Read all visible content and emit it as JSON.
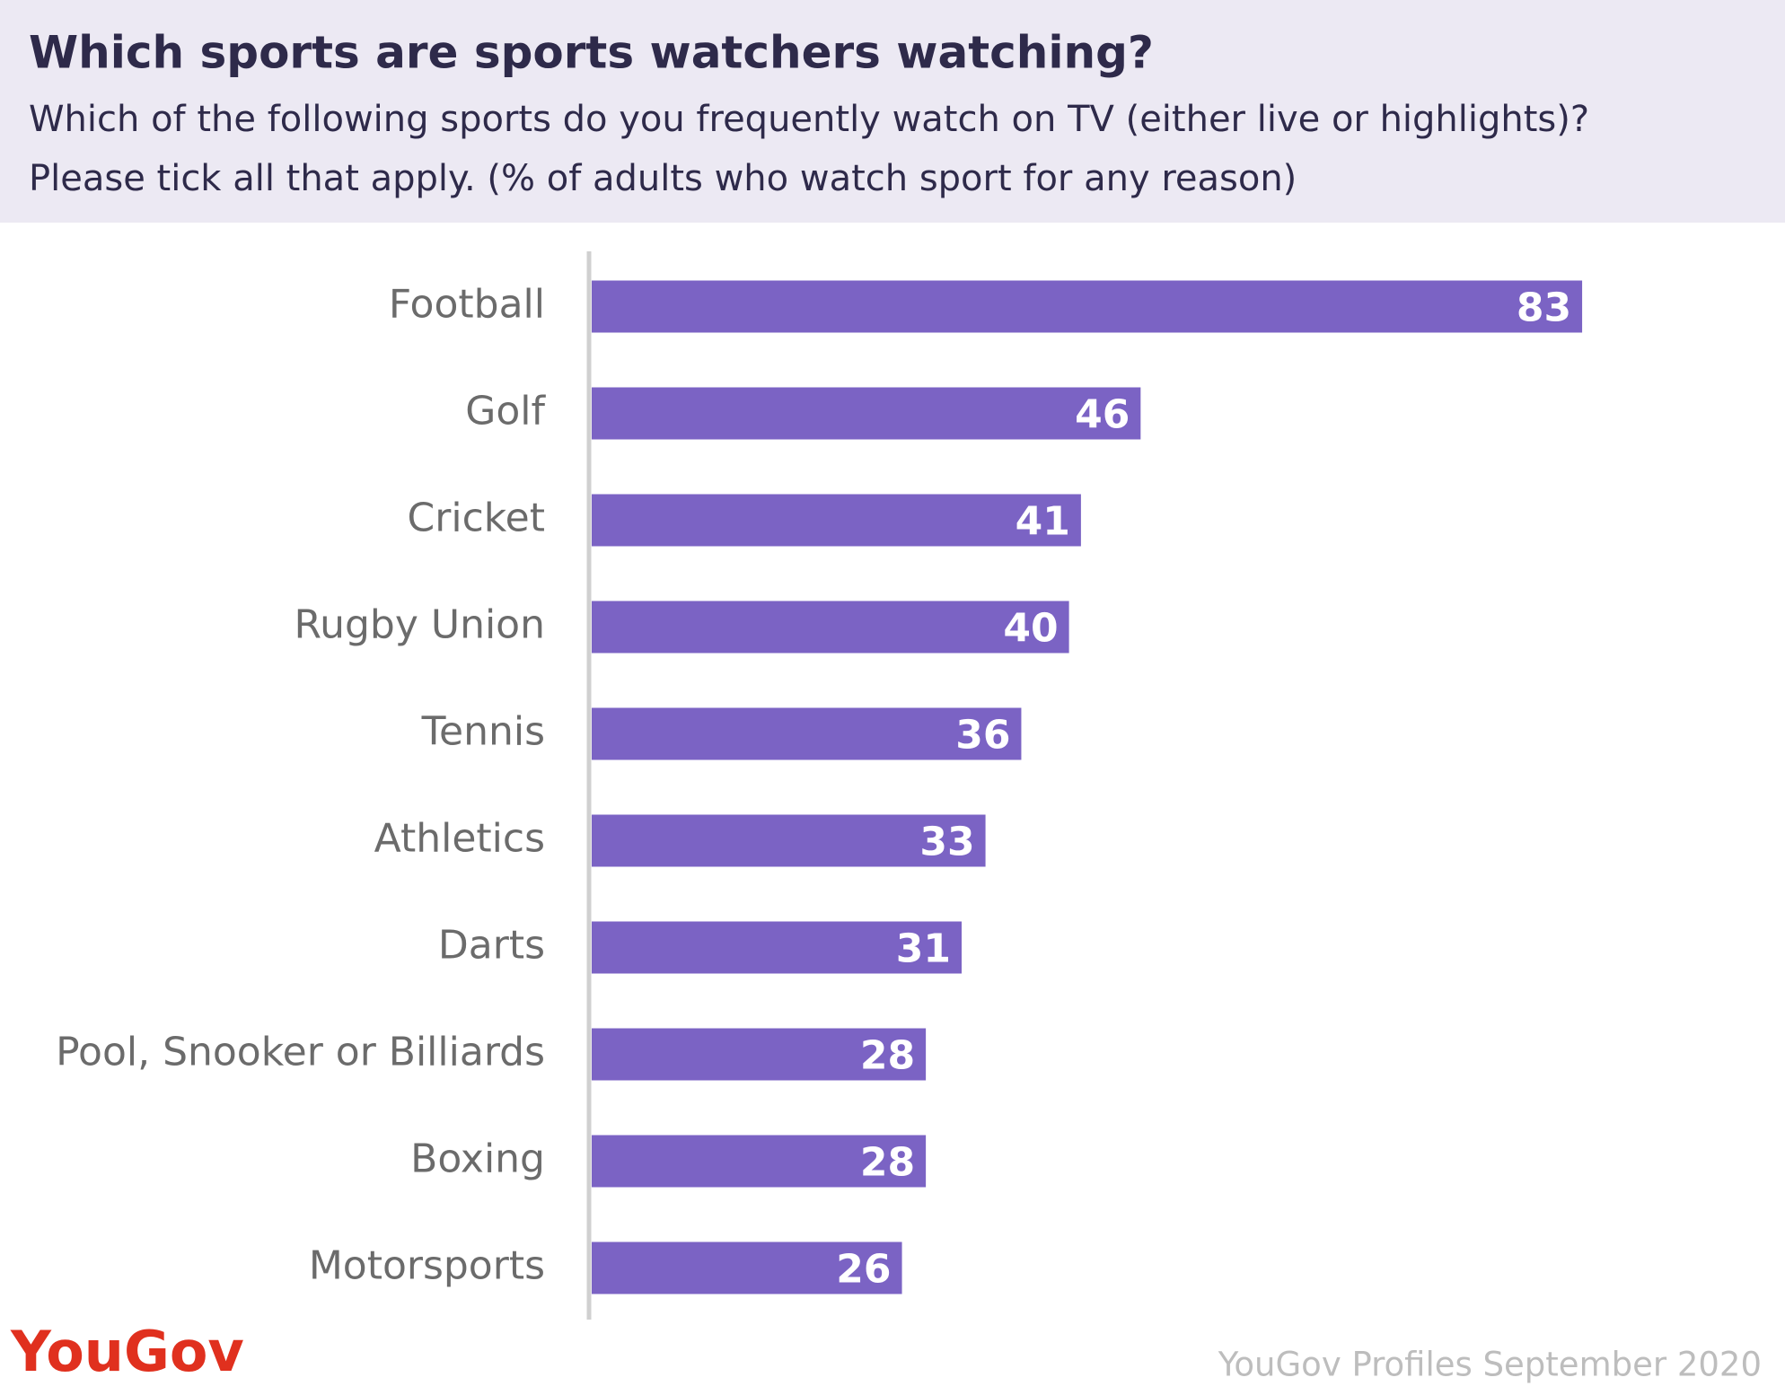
{
  "chart_data": {
    "type": "bar",
    "orientation": "horizontal",
    "title": "Which sports are sports watchers watching?",
    "subtitle": [
      "Which of the following sports do you frequently watch on TV (either live or highlights)?",
      "Please tick all that apply. (% of adults who watch sport for any reason)"
    ],
    "categories": [
      "Football",
      "Golf",
      "Cricket",
      "Rugby Union",
      "Tennis",
      "Athletics",
      "Darts",
      "Pool, Snooker or Billiards",
      "Boxing",
      "Motorsports"
    ],
    "values": [
      83,
      46,
      41,
      40,
      36,
      33,
      31,
      28,
      28,
      26
    ],
    "color": "#7b63c4",
    "xlim": [
      0,
      100
    ],
    "logo": "YouGov",
    "source": "YouGov Profiles September 2020"
  }
}
